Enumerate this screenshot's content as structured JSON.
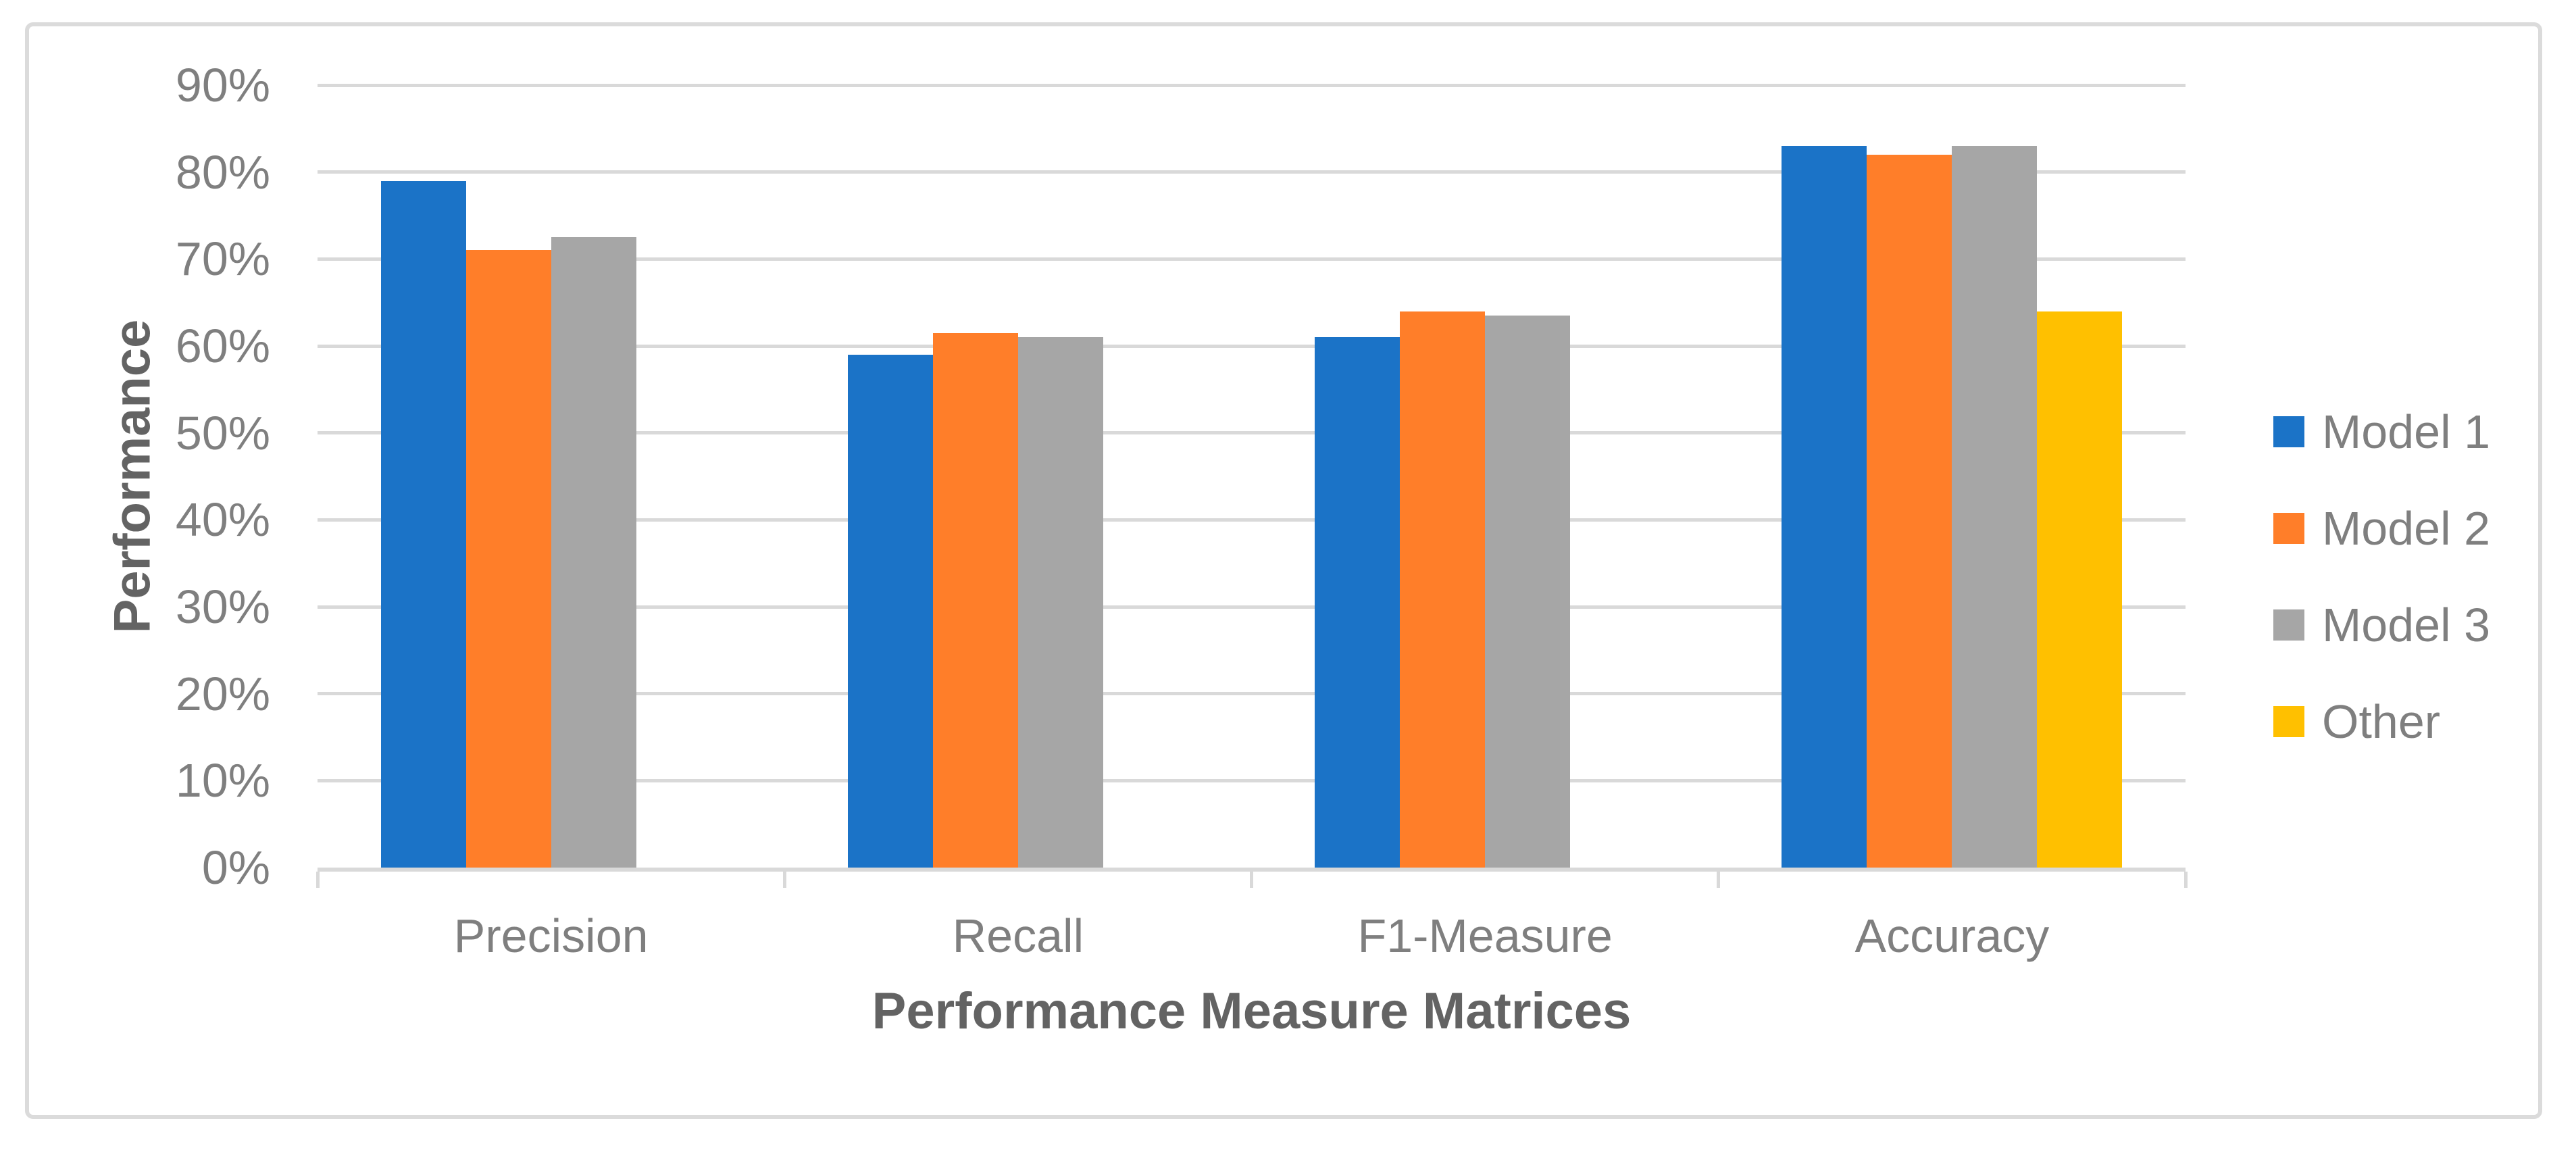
{
  "chart_data": {
    "type": "bar",
    "title": "",
    "xlabel": "Performance Measure Matrices",
    "ylabel": "Performance",
    "categories": [
      "Precision",
      "Recall",
      "F1-Measure",
      "Accuracy"
    ],
    "series": [
      {
        "name": "Model 1",
        "color": "#1B73C7",
        "values": [
          79,
          59,
          61,
          83
        ]
      },
      {
        "name": "Model 2",
        "color": "#FF7E29",
        "values": [
          71,
          61.5,
          64,
          82
        ]
      },
      {
        "name": "Model 3",
        "color": "#A6A6A6",
        "values": [
          72.5,
          61,
          63.5,
          83
        ]
      },
      {
        "name": "Other",
        "color": "#FFC000",
        "values": [
          null,
          null,
          null,
          64
        ]
      }
    ],
    "ylim": [
      0,
      90
    ],
    "ytick_step": 10,
    "ytick_labels": [
      "0%",
      "10%",
      "20%",
      "30%",
      "40%",
      "50%",
      "60%",
      "70%",
      "80%",
      "90%"
    ],
    "grid": "horizontal",
    "legend_position": "right",
    "colors": {
      "gridline": "#D9D9D9",
      "axis_line": "#D9D9D9",
      "tick_label": "#7F7F7F",
      "axis_title": "#636363",
      "frame_border": "#DBDBDB",
      "background": "#FFFFFF"
    }
  }
}
